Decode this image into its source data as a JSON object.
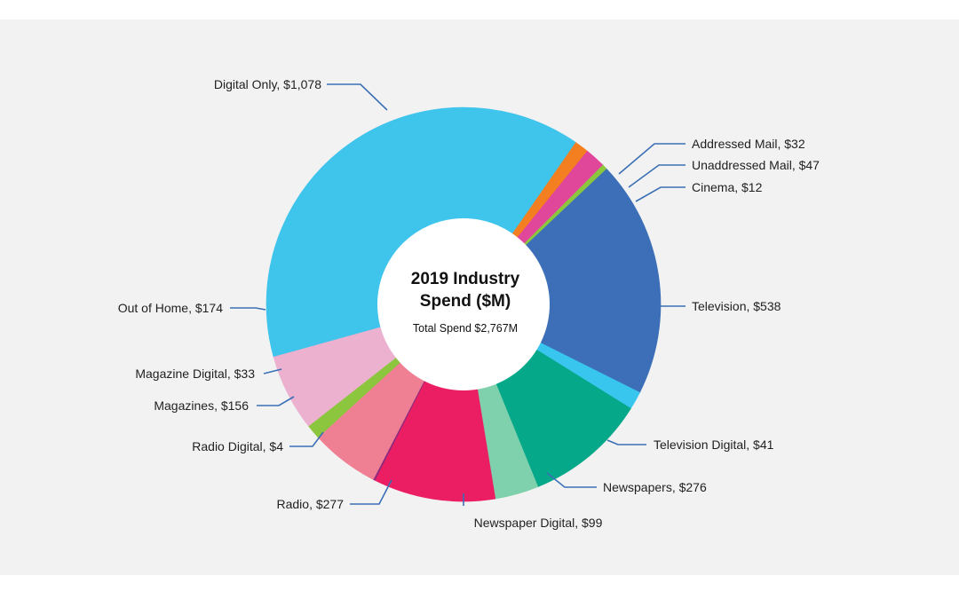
{
  "chart_data": {
    "type": "pie",
    "variant": "donut",
    "title": "2019 Industry Spend ($M)",
    "title_lines": [
      "2019 Industry",
      "Spend ($M)"
    ],
    "subtitle": "Total Spend $2,767M",
    "total": 2767,
    "slices": [
      {
        "label": "Digital Only, $1,078",
        "name": "Digital Only",
        "value": 1078,
        "color": "#3fc4ec"
      },
      {
        "label": "Addressed Mail, $32",
        "name": "Addressed Mail",
        "value": 32,
        "color": "#f47f20"
      },
      {
        "label": "Unaddressed Mail, $47",
        "name": "Unaddressed Mail",
        "value": 47,
        "color": "#e0469a"
      },
      {
        "label": "Cinema, $12",
        "name": "Cinema",
        "value": 12,
        "color": "#8cc63f"
      },
      {
        "label": "Television, $538",
        "name": "Television",
        "value": 538,
        "color": "#3c6fb8"
      },
      {
        "label": "Television Digital, $41",
        "name": "Television Digital",
        "value": 41,
        "color": "#39c6ee"
      },
      {
        "label": "Newspapers, $276",
        "name": "Newspapers",
        "value": 276,
        "color": "#06a88a"
      },
      {
        "label": "Newspaper Digital, $99",
        "name": "Newspaper Digital",
        "value": 99,
        "color": "#7fd0ad"
      },
      {
        "label": "Radio, $277",
        "name": "Radio",
        "value": 277,
        "color": "#ec1e63"
      },
      {
        "label": "Radio Digital, $4",
        "name": "Radio Digital",
        "value": 4,
        "color": "#8b2a7e"
      },
      {
        "label": "Magazines, $156",
        "name": "Magazines",
        "value": 156,
        "color": "#ef7f92"
      },
      {
        "label": "Magazine Digital, $33",
        "name": "Magazine Digital",
        "value": 33,
        "color": "#8cc63f"
      },
      {
        "label": "Out of Home, $174",
        "name": "Out of Home",
        "value": 174,
        "color": "#ebb1cf"
      }
    ]
  }
}
